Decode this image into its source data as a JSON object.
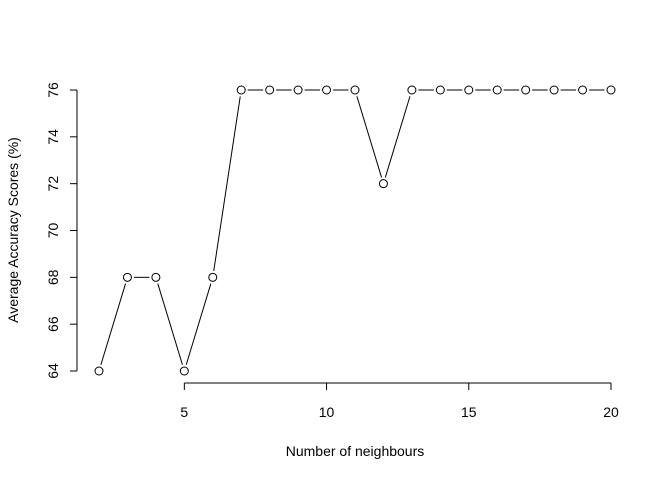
{
  "chart_data": {
    "type": "line",
    "title": "",
    "xlabel": "Number of neighbours",
    "ylabel": "Average Accuracy Scores (%)",
    "x": [
      2,
      3,
      4,
      5,
      6,
      7,
      8,
      9,
      10,
      11,
      12,
      13,
      14,
      15,
      16,
      17,
      18,
      19,
      20
    ],
    "series": [
      {
        "values": [
          64,
          68,
          68,
          64,
          68,
          76,
          76,
          76,
          76,
          76,
          72,
          76,
          76,
          76,
          76,
          76,
          76,
          76,
          76
        ]
      }
    ],
    "xlim": [
      2,
      20
    ],
    "ylim": [
      64,
      76
    ],
    "x_ticks": [
      5,
      10,
      15,
      20
    ],
    "y_ticks": [
      64,
      66,
      68,
      70,
      72,
      74,
      76
    ],
    "grid": false,
    "legend": "none",
    "marker": "open-circle",
    "line_style": "overplotted (type b)",
    "colors": {
      "line": "#000000",
      "marker_fill": "#ffffff",
      "background": "#ffffff"
    }
  }
}
